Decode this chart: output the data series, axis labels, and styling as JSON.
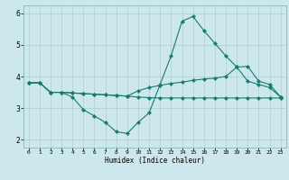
{
  "xlabel": "Humidex (Indice chaleur)",
  "x": [
    0,
    1,
    2,
    3,
    4,
    5,
    6,
    7,
    8,
    9,
    10,
    11,
    12,
    13,
    14,
    15,
    16,
    17,
    18,
    19,
    20,
    21,
    22,
    23
  ],
  "line1_y": [
    3.8,
    3.8,
    3.5,
    3.5,
    3.35,
    2.95,
    2.75,
    2.55,
    2.25,
    2.2,
    2.55,
    2.85,
    3.75,
    4.65,
    5.75,
    5.9,
    5.45,
    5.05,
    4.65,
    4.3,
    3.85,
    3.75,
    3.65,
    3.35
  ],
  "line2_y": [
    3.8,
    3.8,
    3.5,
    3.5,
    3.48,
    3.46,
    3.44,
    3.42,
    3.4,
    3.38,
    3.55,
    3.65,
    3.72,
    3.78,
    3.82,
    3.88,
    3.92,
    3.95,
    4.0,
    4.3,
    4.32,
    3.85,
    3.75,
    3.35
  ],
  "line3_y": [
    3.8,
    3.8,
    3.5,
    3.5,
    3.48,
    3.46,
    3.44,
    3.42,
    3.4,
    3.38,
    3.35,
    3.33,
    3.32,
    3.32,
    3.32,
    3.32,
    3.32,
    3.32,
    3.32,
    3.32,
    3.32,
    3.32,
    3.32,
    3.32
  ],
  "line_color": "#1a7a6e",
  "bg_color": "#cde8ec",
  "grid_color": "#b0ced4",
  "ylim": [
    1.75,
    6.25
  ],
  "yticks": [
    2,
    3,
    4,
    5,
    6
  ],
  "xlim": [
    -0.5,
    23.5
  ]
}
